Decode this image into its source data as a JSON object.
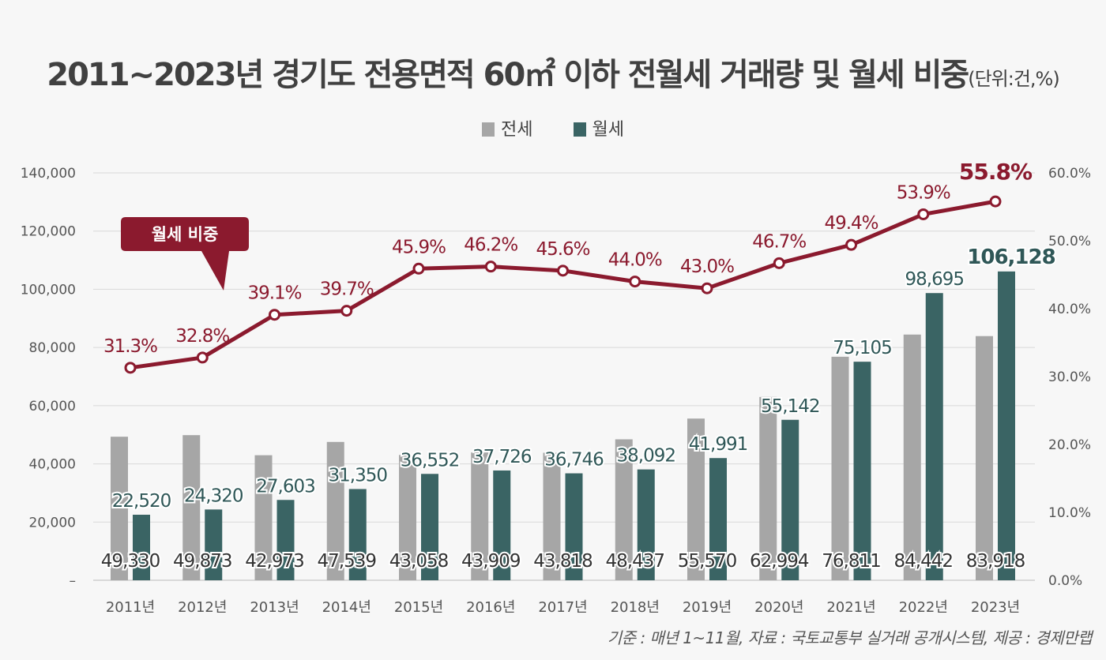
{
  "chart_data": {
    "type": "bar+line",
    "title": "2011~2023년 경기도 전용면적 60㎡ 이하 전월세 거래량 및 월세 비중",
    "title_unit": "(단위:건,%)",
    "categories": [
      "2011년",
      "2012년",
      "2013년",
      "2014년",
      "2015년",
      "2016년",
      "2017년",
      "2018년",
      "2019년",
      "2020년",
      "2021년",
      "2022년",
      "2023년"
    ],
    "series": [
      {
        "name": "전세",
        "type": "bar",
        "axis": "left",
        "color": "#a6a6a6",
        "values": [
          49330,
          49873,
          42973,
          47539,
          43058,
          43909,
          43818,
          48437,
          55570,
          62994,
          76811,
          84442,
          83918
        ],
        "labels": [
          "49,330",
          "49,873",
          "42,973",
          "47,539",
          "43,058",
          "43,909",
          "43,818",
          "48,437",
          "55,570",
          "62,994",
          "76,811",
          "84,442",
          "83,918"
        ]
      },
      {
        "name": "월세",
        "type": "bar",
        "axis": "left",
        "color": "#3a6464",
        "values": [
          22520,
          24320,
          27603,
          31350,
          36552,
          37726,
          36746,
          38092,
          41991,
          55142,
          75105,
          98695,
          106128
        ],
        "labels": [
          "22,520",
          "24,320",
          "27,603",
          "31,350",
          "36,552",
          "37,726",
          "36,746",
          "38,092",
          "41,991",
          "55,142",
          "75,105",
          "98,695",
          "106,128"
        ]
      },
      {
        "name": "월세 비중",
        "type": "line",
        "axis": "right",
        "color": "#8b1a2e",
        "values": [
          31.3,
          32.8,
          39.1,
          39.7,
          45.9,
          46.2,
          45.6,
          44.0,
          43.0,
          46.7,
          49.4,
          53.9,
          55.8
        ],
        "labels": [
          "31.3%",
          "32.8%",
          "39.1%",
          "39.7%",
          "45.9%",
          "46.2%",
          "45.6%",
          "44.0%",
          "43.0%",
          "46.7%",
          "49.4%",
          "53.9%",
          "55.8%"
        ]
      }
    ],
    "y_left": {
      "ylim": [
        0,
        140000
      ],
      "ticks": [
        "–",
        "20,000",
        "40,000",
        "60,000",
        "80,000",
        "100,000",
        "120,000",
        "140,000"
      ]
    },
    "y_right": {
      "ylim": [
        0,
        60
      ],
      "ticks": [
        "0.0%",
        "10.0%",
        "20.0%",
        "30.0%",
        "40.0%",
        "50.0%",
        "60.0%"
      ]
    },
    "grid": true,
    "legend": "top-center",
    "callout": "월세 비중",
    "footnote": "기준 : 매년 1~11월, 자료 : 국토교통부 실거래 공개시스템, 제공 : 경제만랩"
  }
}
